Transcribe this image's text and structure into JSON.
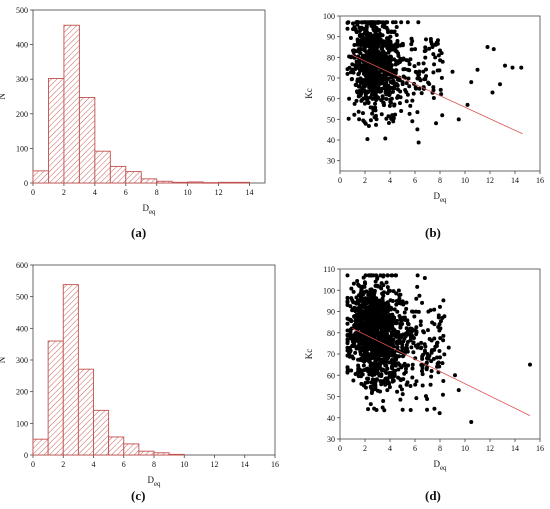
{
  "chart_data": [
    {
      "panel": "(a)",
      "type": "bar",
      "subtype": "histogram",
      "bin_edges": [
        0,
        1,
        2,
        3,
        4,
        5,
        6,
        7,
        8,
        9,
        10,
        11,
        12,
        13,
        14
      ],
      "values": [
        35,
        302,
        456,
        247,
        92,
        48,
        33,
        12,
        5,
        2,
        3,
        1,
        2,
        2
      ],
      "xlabel": "D",
      "xlabel_sub": "eq",
      "ylabel": "N",
      "xlim": [
        0,
        15
      ],
      "ylim": [
        0,
        500
      ],
      "xticks": [
        0,
        2,
        4,
        6,
        8,
        10,
        12,
        14
      ],
      "yticks": [
        0,
        100,
        200,
        300,
        400,
        500
      ],
      "bar_color": "#c0504d",
      "fill": "diagonal hatch"
    },
    {
      "panel": "(b)",
      "type": "scatter",
      "xlabel": "D",
      "xlabel_sub": "eq",
      "ylabel": "Kc",
      "xlim": [
        0,
        16
      ],
      "ylim": [
        25,
        100
      ],
      "xticks": [
        0,
        2,
        4,
        6,
        8,
        10,
        12,
        14,
        16
      ],
      "yticks": [
        30,
        40,
        50,
        60,
        70,
        80,
        90,
        100
      ],
      "n_points": 900,
      "cloud": {
        "x_mode": 2.3,
        "x_spread": 1.3,
        "y_center": 77,
        "y_spread": 11
      },
      "outlier_points": [
        [
          9,
          73
        ],
        [
          10.5,
          68
        ],
        [
          11,
          74
        ],
        [
          11.8,
          85
        ],
        [
          12.3,
          84
        ],
        [
          12.8,
          67
        ],
        [
          13.2,
          76
        ],
        [
          13.8,
          75
        ],
        [
          14.5,
          75
        ],
        [
          10.2,
          57
        ],
        [
          12.2,
          63
        ],
        [
          9.5,
          50
        ]
      ],
      "trendline": {
        "x": [
          1,
          14.6
        ],
        "y": [
          81,
          43
        ],
        "color": "#d9534f"
      },
      "point_color": "#000000"
    },
    {
      "panel": "(c)",
      "type": "bar",
      "subtype": "histogram",
      "bin_edges": [
        0,
        1,
        2,
        3,
        4,
        5,
        6,
        7,
        8,
        9,
        10
      ],
      "values": [
        50,
        360,
        538,
        271,
        141,
        57,
        35,
        12,
        7,
        2
      ],
      "xlabel": "D",
      "xlabel_sub": "eq",
      "ylabel": "N",
      "xlim": [
        0,
        16
      ],
      "ylim": [
        0,
        600
      ],
      "xticks": [
        0,
        2,
        4,
        6,
        8,
        10,
        12,
        14,
        16
      ],
      "yticks": [
        0,
        100,
        200,
        300,
        400,
        500,
        600
      ],
      "bar_color": "#c0504d",
      "fill": "diagonal hatch"
    },
    {
      "panel": "(d)",
      "type": "scatter",
      "xlabel": "D",
      "xlabel_sub": "eq",
      "ylabel": "Kc",
      "xlim": [
        0,
        16
      ],
      "ylim": [
        30,
        110
      ],
      "xticks": [
        0,
        2,
        4,
        6,
        8,
        10,
        12,
        14,
        16
      ],
      "yticks": [
        30,
        40,
        50,
        60,
        70,
        80,
        90,
        100,
        110
      ],
      "n_points": 1300,
      "cloud": {
        "x_mode": 2.4,
        "x_spread": 1.4,
        "y_center": 80,
        "y_spread": 12
      },
      "outlier_points": [
        [
          8.2,
          87
        ],
        [
          8.7,
          73
        ],
        [
          9.5,
          53
        ],
        [
          10.5,
          38
        ],
        [
          15.2,
          65
        ],
        [
          9.2,
          60
        ]
      ],
      "trendline": {
        "x": [
          1,
          15.2
        ],
        "y": [
          82,
          41
        ],
        "color": "#d9534f"
      },
      "point_color": "#000000"
    }
  ],
  "panel_labels": [
    "(a)",
    "(b)",
    "(c)",
    "(d)"
  ]
}
